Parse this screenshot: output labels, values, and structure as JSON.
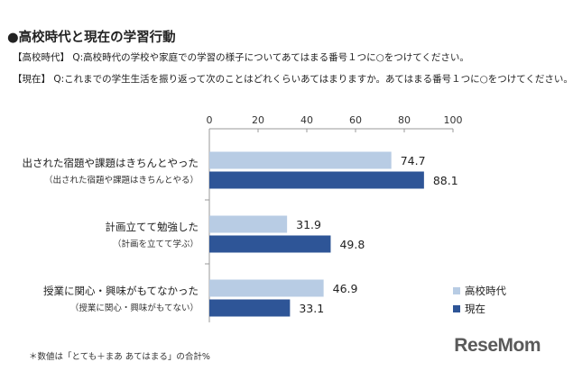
{
  "header": {
    "title": "●高校時代と現在の学習行動",
    "q_past": "【高校時代】 Q:高校時代の学校や家庭での学習の様子についてあてはまる番号１つに○をつけてください。",
    "q_now": "【現在】 Q:これまでの学生生活を振り返って次のことはどれくらいあてはまりますか。あてはまる番号１つに○をつけてください。"
  },
  "footnote": "＊数値は「とても＋まあ あてはまる」の合計%",
  "logo": "ReseMom",
  "chart_data": {
    "type": "bar",
    "orientation": "horizontal",
    "xlim": [
      0,
      100
    ],
    "xticks": [
      0,
      20,
      40,
      60,
      80,
      100
    ],
    "grid": false,
    "legend_position": "bottom-right",
    "categories": [
      {
        "label": "出された宿題や課題はきちんとやった",
        "sublabel": "（出された宿題や課題はきちんとやる）"
      },
      {
        "label": "計画立てて勉強した",
        "sublabel": "（計画を立てて学ぶ）"
      },
      {
        "label": "授業に関心・興味がもてなかった",
        "sublabel": "（授業に関心・興味がもてない）"
      }
    ],
    "series": [
      {
        "name": "高校時代",
        "color": "#b8cce4",
        "values": [
          74.7,
          31.9,
          46.9
        ]
      },
      {
        "name": "現在",
        "color": "#2e5597",
        "values": [
          88.1,
          49.8,
          33.1
        ]
      }
    ]
  }
}
